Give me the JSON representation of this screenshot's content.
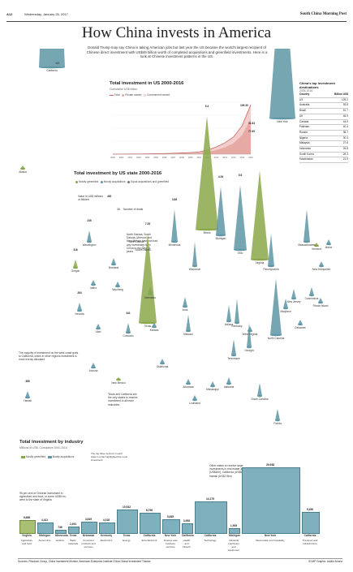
{
  "header": {
    "page": "A12",
    "date": "Wednesday, January 25, 2017",
    "masthead": "South China Morning Post"
  },
  "title": "How China invests in America",
  "intro": "Donald Trump may say China is taking American jobs but last year the US became the world's largest recipient of Chinese direct investment with US$46 billion worth of completed acquisitions and greenfield investments. Here is a look at Chinese investment patterns in the US.",
  "colors": {
    "teal": "#5f97a6",
    "green": "#8aa84a",
    "pink": "#e6a9a4",
    "red": "#c86560"
  },
  "total_chart": {
    "title": "Total investment in US 2000-2016",
    "subtitle": "Cumulative US$ billion",
    "legend": [
      "Total",
      "Private owned",
      "Government owned"
    ],
    "end_labels": [
      "109.30",
      "31.83",
      "77.65"
    ]
  },
  "chart_data": {
    "type": "area",
    "title": "Total investment in US 2000-2016",
    "ylabel": "Cumulative US$ billion",
    "x": [
      "2000",
      "2001",
      "2002",
      "2003",
      "2004",
      "2005",
      "2006",
      "2007",
      "2008",
      "2009",
      "2010",
      "2011",
      "2012",
      "2013",
      "2014",
      "2015",
      "2016"
    ],
    "series": [
      {
        "name": "Total",
        "values": [
          0.1,
          0.2,
          0.3,
          0.4,
          0.6,
          1.0,
          1.4,
          2.0,
          2.6,
          3.5,
          5.0,
          9.0,
          16.0,
          25.0,
          38.0,
          63.0,
          109.3
        ]
      },
      {
        "name": "Private owned",
        "values": [
          0.05,
          0.1,
          0.15,
          0.2,
          0.3,
          0.5,
          0.7,
          1.0,
          1.3,
          1.8,
          2.6,
          5.0,
          9.0,
          15.0,
          24.0,
          42.0,
          77.65
        ]
      },
      {
        "name": "Government owned",
        "values": [
          0.05,
          0.1,
          0.15,
          0.2,
          0.3,
          0.5,
          0.7,
          1.0,
          1.3,
          1.7,
          2.4,
          4.0,
          7.0,
          10.0,
          14.0,
          21.0,
          31.83
        ]
      }
    ],
    "ylim": [
      0,
      115
    ]
  },
  "top_destinations": {
    "title": "China's top investment destinations",
    "subtitle": "2005-2016",
    "head": [
      "Country",
      "Billion US$"
    ],
    "rows": [
      [
        "US",
        "109.2"
      ],
      [
        "Australia",
        "93.8"
      ],
      [
        "Brazil",
        "51.7"
      ],
      [
        "UK",
        "46.9"
      ],
      [
        "Canada",
        "44.0"
      ],
      [
        "Pakistan",
        "40.4"
      ],
      [
        "Russia",
        "36.7"
      ],
      [
        "Nigeria",
        "30.4"
      ],
      [
        "Malaysia",
        "27.8"
      ],
      [
        "Indonesia",
        "26.8"
      ],
      [
        "South Korea",
        "26.3"
      ],
      [
        "Kazakhstan",
        "21.9"
      ]
    ]
  },
  "state_map": {
    "title": "Total investment by US state 2000-2016",
    "legend": [
      "Mostly greenfield",
      "Mostly acquisitions",
      "Equal acquisitions and greenfield"
    ],
    "key": {
      "value_label": "Value in US$ millions or billions",
      "value": "430",
      "count": "38",
      "count_label": "Number of deals"
    },
    "note_dakota": "North Dakota, South Dakota, Vermont and New Mexico have not had any investment from China in the past 16 years",
    "note_california": "The majority of investment on the west coast goes to California, which in other regions investment is more evenly allocated",
    "note_texas": "Texas and California are the only states to receive investment in all main industries",
    "states": [
      {
        "name": "Alaska",
        "value": "",
        "deals": ""
      },
      {
        "name": "California",
        "value": "13.5 bn",
        "deals": "463"
      },
      {
        "name": "Hawaii",
        "value": "385",
        "deals": ""
      },
      {
        "name": "Washington",
        "value": "245",
        "deals": ""
      },
      {
        "name": "Oregon",
        "value": "316",
        "deals": ""
      },
      {
        "name": "Idaho",
        "value": "",
        "deals": ""
      },
      {
        "name": "Montana",
        "value": "",
        "deals": ""
      },
      {
        "name": "Nevada",
        "value": "264",
        "deals": ""
      },
      {
        "name": "Utah",
        "value": "",
        "deals": ""
      },
      {
        "name": "Arizona",
        "value": "",
        "deals": ""
      },
      {
        "name": "Wyoming",
        "value": "",
        "deals": ""
      },
      {
        "name": "Colorado",
        "value": "341",
        "deals": ""
      },
      {
        "name": "New Mexico",
        "value": "",
        "deals": ""
      },
      {
        "name": "Nebraska",
        "value": "",
        "deals": ""
      },
      {
        "name": "Kansas",
        "value": "",
        "deals": ""
      },
      {
        "name": "Oklahoma",
        "value": "",
        "deals": ""
      },
      {
        "name": "Texas",
        "value": "7.35",
        "deals": ""
      },
      {
        "name": "Minnesota",
        "value": "3.68",
        "deals": ""
      },
      {
        "name": "Iowa",
        "value": "",
        "deals": ""
      },
      {
        "name": "Missouri",
        "value": "",
        "deals": ""
      },
      {
        "name": "Arkansas",
        "value": "",
        "deals": ""
      },
      {
        "name": "Louisiana",
        "value": "",
        "deals": ""
      },
      {
        "name": "Wisconsin",
        "value": "",
        "deals": ""
      },
      {
        "name": "Illinois",
        "value": "9.4",
        "deals": ""
      },
      {
        "name": "Michigan",
        "value": "4.39",
        "deals": ""
      },
      {
        "name": "Indiana",
        "value": "",
        "deals": ""
      },
      {
        "name": "Kentucky",
        "value": "",
        "deals": ""
      },
      {
        "name": "Tennessee",
        "value": "",
        "deals": ""
      },
      {
        "name": "Mississippi",
        "value": "",
        "deals": ""
      },
      {
        "name": "Alabama",
        "value": "",
        "deals": ""
      },
      {
        "name": "Ohio",
        "value": "5.6",
        "deals": ""
      },
      {
        "name": "Georgia",
        "value": "",
        "deals": ""
      },
      {
        "name": "Florida",
        "value": "",
        "deals": ""
      },
      {
        "name": "South Carolina",
        "value": "",
        "deals": ""
      },
      {
        "name": "North Carolina",
        "value": "",
        "deals": ""
      },
      {
        "name": "Virginia",
        "value": "",
        "deals": ""
      },
      {
        "name": "West Virginia",
        "value": "",
        "deals": ""
      },
      {
        "name": "Pennsylvania",
        "value": "",
        "deals": ""
      },
      {
        "name": "New York",
        "value": "15.9 bn",
        "deals": ""
      },
      {
        "name": "New Jersey",
        "value": "",
        "deals": ""
      },
      {
        "name": "Delaware",
        "value": "",
        "deals": ""
      },
      {
        "name": "Maryland",
        "value": "",
        "deals": ""
      },
      {
        "name": "Connecticut",
        "value": "",
        "deals": ""
      },
      {
        "name": "Rhode Island",
        "value": "",
        "deals": ""
      },
      {
        "name": "Massachusetts",
        "value": "",
        "deals": ""
      },
      {
        "name": "Vermont",
        "value": "",
        "deals": ""
      },
      {
        "name": "New Hampshire",
        "value": "",
        "deals": ""
      },
      {
        "name": "Maine",
        "value": "",
        "deals": ""
      },
      {
        "name": "North Dakota",
        "value": "",
        "deals": ""
      },
      {
        "name": "South Dakota",
        "value": "",
        "deals": ""
      }
    ]
  },
  "industry": {
    "title": "Total investment by industry",
    "subtitle": "Millions of US$. Cumulative 2000-2016",
    "legend": [
      "Mostly greenfield",
      "Mostly acquisitions"
    ],
    "legend_note": "The top three sectors in each state in a bar highlighted the most investment",
    "note_virginia": "95 per cent of Chinese investment in agriculture and food, or some US$5 bn, went to the state of Virginia",
    "note_nystate": "Other states to receive large investments in real estate are Illinois (US$4bn), California (US$5bn) and Hawaii (US$2.5bn)",
    "items": [
      {
        "state": "Virginia",
        "industry": "Agriculture and food",
        "value": "5,668",
        "kind": "green"
      },
      {
        "state": "Michigan",
        "industry": "Automotive",
        "value": "4,411",
        "kind": "teal"
      },
      {
        "state": "Minnesota",
        "industry": "Aviation",
        "value": "736",
        "kind": "teal"
      },
      {
        "state": "Texas",
        "industry": "Basic materials",
        "value": "2,491",
        "kind": "teal"
      },
      {
        "state": "Nebraska",
        "industry": "Consumer products and services",
        "value": "4,819",
        "kind": "teal"
      },
      {
        "state": "Kentucky",
        "industry": "Electronics",
        "value": "4,318",
        "kind": "teal"
      },
      {
        "state": "Texas",
        "industry": "Energy",
        "value": "10,532",
        "kind": "teal"
      },
      {
        "state": "California",
        "industry": "Entertainment",
        "value": "8,796",
        "kind": "teal"
      },
      {
        "state": "New York",
        "industry": "Finance and business services",
        "value": "5,835",
        "kind": "teal"
      },
      {
        "state": "California",
        "industry": "Health and biotech",
        "value": "3,953",
        "kind": "teal"
      },
      {
        "state": "California",
        "industry": "Technology",
        "value": "14,175",
        "kind": "teal"
      },
      {
        "state": "Michigan",
        "industry": "Industrial machinery and equipment",
        "value": "1,905",
        "kind": "teal"
      },
      {
        "state": "New York",
        "industry": "Real estate and hospitality",
        "value": "29,938",
        "kind": "teal"
      },
      {
        "state": "California",
        "industry": "Transport and infrastructure",
        "value": "9,490",
        "kind": "teal"
      }
    ]
  },
  "footer": {
    "sources": "Sources: Rhodium Group, China Investment Monitor, American Enterprise Institute China Global Investment Tracker",
    "credit": "SCMP Graphic: Adolfo Arranz"
  }
}
